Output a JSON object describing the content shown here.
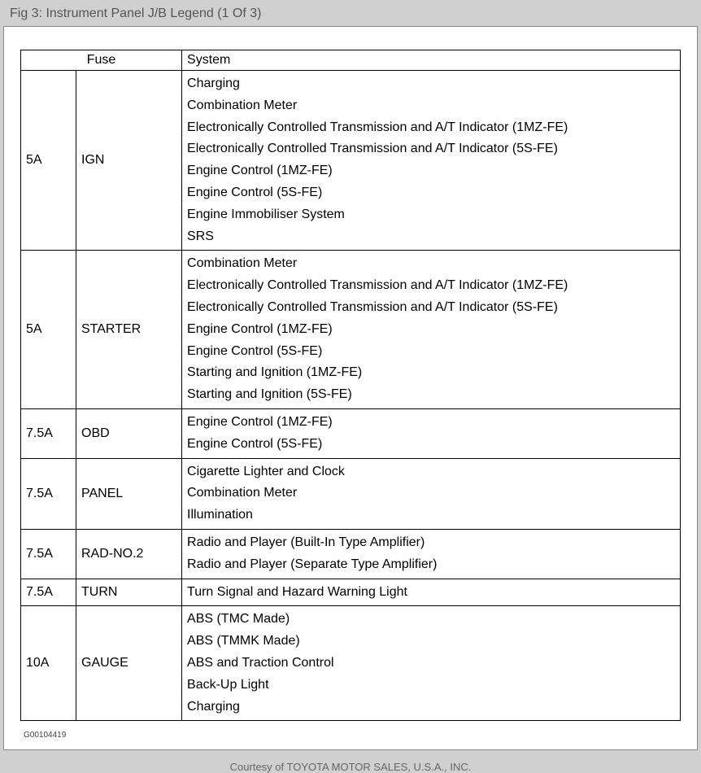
{
  "title": "Fig 3: Instrument Panel J/B Legend (1 Of 3)",
  "headers": {
    "fuse": "Fuse",
    "system": "System"
  },
  "rows": [
    {
      "amp": "5A",
      "name": "IGN",
      "systems": [
        "Charging",
        "Combination Meter",
        "Electronically Controlled Transmission and A/T Indicator (1MZ-FE)",
        "Electronically Controlled Transmission and A/T Indicator (5S-FE)",
        "Engine Control (1MZ-FE)",
        "Engine Control (5S-FE)",
        "Engine Immobiliser System",
        "SRS"
      ]
    },
    {
      "amp": "5A",
      "name": "STARTER",
      "systems": [
        "Combination Meter",
        "Electronically Controlled Transmission and A/T Indicator (1MZ-FE)",
        "Electronically Controlled Transmission and A/T Indicator (5S-FE)",
        "Engine Control (1MZ-FE)",
        "Engine Control (5S-FE)",
        "Starting and Ignition (1MZ-FE)",
        "Starting and Ignition (5S-FE)"
      ]
    },
    {
      "amp": "7.5A",
      "name": "OBD",
      "systems": [
        "Engine Control (1MZ-FE)",
        "Engine Control (5S-FE)"
      ]
    },
    {
      "amp": "7.5A",
      "name": "PANEL",
      "systems": [
        "Cigarette Lighter and Clock",
        "Combination Meter",
        "Illumination"
      ]
    },
    {
      "amp": "7.5A",
      "name": "RAD-NO.2",
      "systems": [
        "Radio and Player (Built-In Type Amplifier)",
        "Radio and Player (Separate Type Amplifier)"
      ]
    },
    {
      "amp": "7.5A",
      "name": "TURN",
      "systems": [
        "Turn Signal and Hazard Warning Light"
      ]
    },
    {
      "amp": "10A",
      "name": "GAUGE",
      "systems": [
        "ABS (TMC Made)",
        "ABS (TMMK Made)",
        "ABS and Traction Control",
        "Back-Up Light",
        "Charging"
      ]
    }
  ],
  "doc_id": "G00104419",
  "courtesy": "Courtesy of TOYOTA MOTOR SALES, U.S.A., INC."
}
